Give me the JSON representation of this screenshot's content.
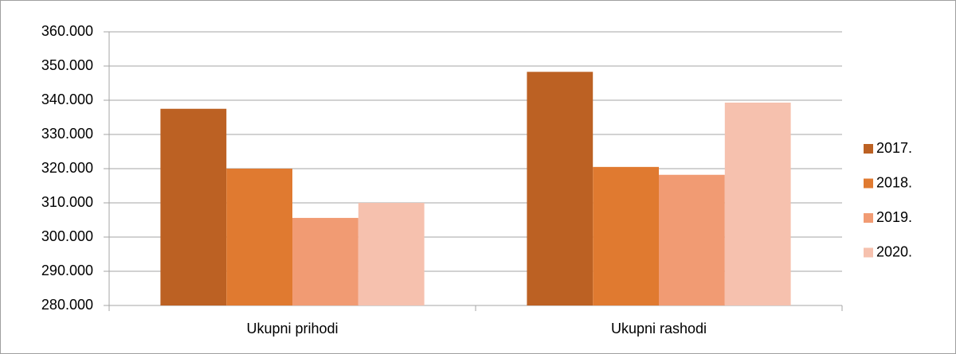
{
  "chart_data": {
    "type": "bar",
    "categories": [
      "Ukupni prihodi",
      "Ukupni rashodi"
    ],
    "series": [
      {
        "name": "2017.",
        "color": "#bc6123",
        "values": [
          337500,
          348300
        ]
      },
      {
        "name": "2018.",
        "color": "#e07a30",
        "values": [
          320000,
          320500
        ]
      },
      {
        "name": "2019.",
        "color": "#f19b73",
        "values": [
          305600,
          318200
        ]
      },
      {
        "name": "2020.",
        "color": "#f6c1ae",
        "values": [
          310000,
          339300
        ]
      }
    ],
    "ylim": [
      280000,
      360000
    ],
    "yticks": [
      {
        "value": 280000,
        "label": "280.000"
      },
      {
        "value": 290000,
        "label": "290.000"
      },
      {
        "value": 300000,
        "label": "300.000"
      },
      {
        "value": 310000,
        "label": "310.000"
      },
      {
        "value": 320000,
        "label": "320.000"
      },
      {
        "value": 330000,
        "label": "330.000"
      },
      {
        "value": 340000,
        "label": "340.000"
      },
      {
        "value": 350000,
        "label": "350.000"
      },
      {
        "value": 360000,
        "label": "360.000"
      }
    ],
    "grid": true,
    "legend": "right"
  }
}
